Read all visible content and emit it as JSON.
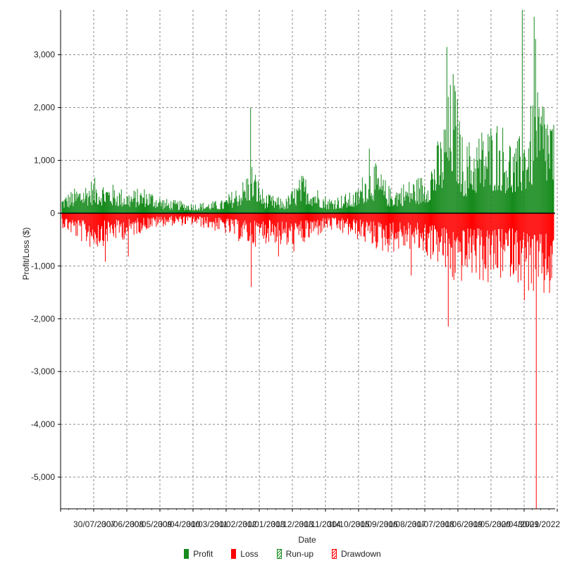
{
  "chart_data": {
    "type": "bar",
    "xlabel": "Date",
    "ylabel": "Profit/Loss ($)",
    "ylim": [
      -5600,
      3850
    ],
    "y_ticks": [
      3000,
      2000,
      1000,
      0,
      -1000,
      -2000,
      -3000,
      -4000,
      -5000
    ],
    "y_tick_labels": [
      "3,000",
      "2,000",
      "1,000",
      "0",
      "-1,000",
      "-2,000",
      "-3,000",
      "-4,000",
      "-5,000"
    ],
    "x_tick_labels": [
      "30/07/2007",
      "30/06/2008",
      "30/05/2009",
      "30/04/2010",
      "30/03/2011",
      "30/02/2012",
      "30/01/2013",
      "30/12/2013",
      "30/11/2014",
      "30/10/2015",
      "30/09/2016",
      "30/08/2017",
      "30/07/2018",
      "30/06/2019",
      "30/05/2020",
      "30/04/2021",
      "30/09/2022"
    ],
    "grid": true,
    "legend_position": "bottom",
    "legend": [
      {
        "name": "Profit",
        "style": "solid",
        "color": "#168a1c"
      },
      {
        "name": "Loss",
        "style": "solid",
        "color": "#ff0000"
      },
      {
        "name": "Run-up",
        "style": "hatched",
        "color": "#168a1c"
      },
      {
        "name": "Drawdown",
        "style": "hatched",
        "color": "#ff0000"
      }
    ],
    "n_periods": 705,
    "profit_envelope": [
      [
        0,
        300
      ],
      [
        20,
        450
      ],
      [
        45,
        620
      ],
      [
        70,
        520
      ],
      [
        95,
        400
      ],
      [
        120,
        460
      ],
      [
        150,
        250
      ],
      [
        190,
        180
      ],
      [
        230,
        230
      ],
      [
        260,
        600
      ],
      [
        272,
        900
      ],
      [
        290,
        350
      ],
      [
        320,
        250
      ],
      [
        345,
        700
      ],
      [
        380,
        280
      ],
      [
        420,
        380
      ],
      [
        442,
        1000
      ],
      [
        470,
        450
      ],
      [
        520,
        700
      ],
      [
        545,
        1500
      ],
      [
        560,
        2600
      ],
      [
        575,
        1200
      ],
      [
        600,
        1500
      ],
      [
        625,
        1700
      ],
      [
        650,
        1200
      ],
      [
        675,
        2000
      ],
      [
        690,
        2200
      ],
      [
        704,
        1700
      ]
    ],
    "loss_envelope": [
      [
        0,
        -250
      ],
      [
        20,
        -450
      ],
      [
        45,
        -650
      ],
      [
        70,
        -500
      ],
      [
        95,
        -450
      ],
      [
        120,
        -300
      ],
      [
        150,
        -220
      ],
      [
        190,
        -220
      ],
      [
        230,
        -350
      ],
      [
        270,
        -600
      ],
      [
        300,
        -500
      ],
      [
        330,
        -700
      ],
      [
        380,
        -300
      ],
      [
        420,
        -450
      ],
      [
        460,
        -700
      ],
      [
        500,
        -650
      ],
      [
        540,
        -900
      ],
      [
        560,
        -1300
      ],
      [
        590,
        -1100
      ],
      [
        610,
        -1300
      ],
      [
        640,
        -1100
      ],
      [
        660,
        -1250
      ],
      [
        680,
        -1600
      ],
      [
        704,
        -1500
      ]
    ],
    "spikes": [
      {
        "index": 270,
        "value": 2000
      },
      {
        "index": 271,
        "value": -1400
      },
      {
        "index": 62,
        "value": -920
      },
      {
        "index": 95,
        "value": -820
      },
      {
        "index": 310,
        "value": -820
      },
      {
        "index": 440,
        "value": 1220
      },
      {
        "index": 500,
        "value": -1180
      },
      {
        "index": 551,
        "value": 3150
      },
      {
        "index": 553,
        "value": -2150
      },
      {
        "index": 659,
        "value": 3850
      },
      {
        "index": 662,
        "value": -1650
      },
      {
        "index": 676,
        "value": 3720
      },
      {
        "index": 678,
        "value": 3300
      },
      {
        "index": 679,
        "value": -5600
      }
    ]
  }
}
